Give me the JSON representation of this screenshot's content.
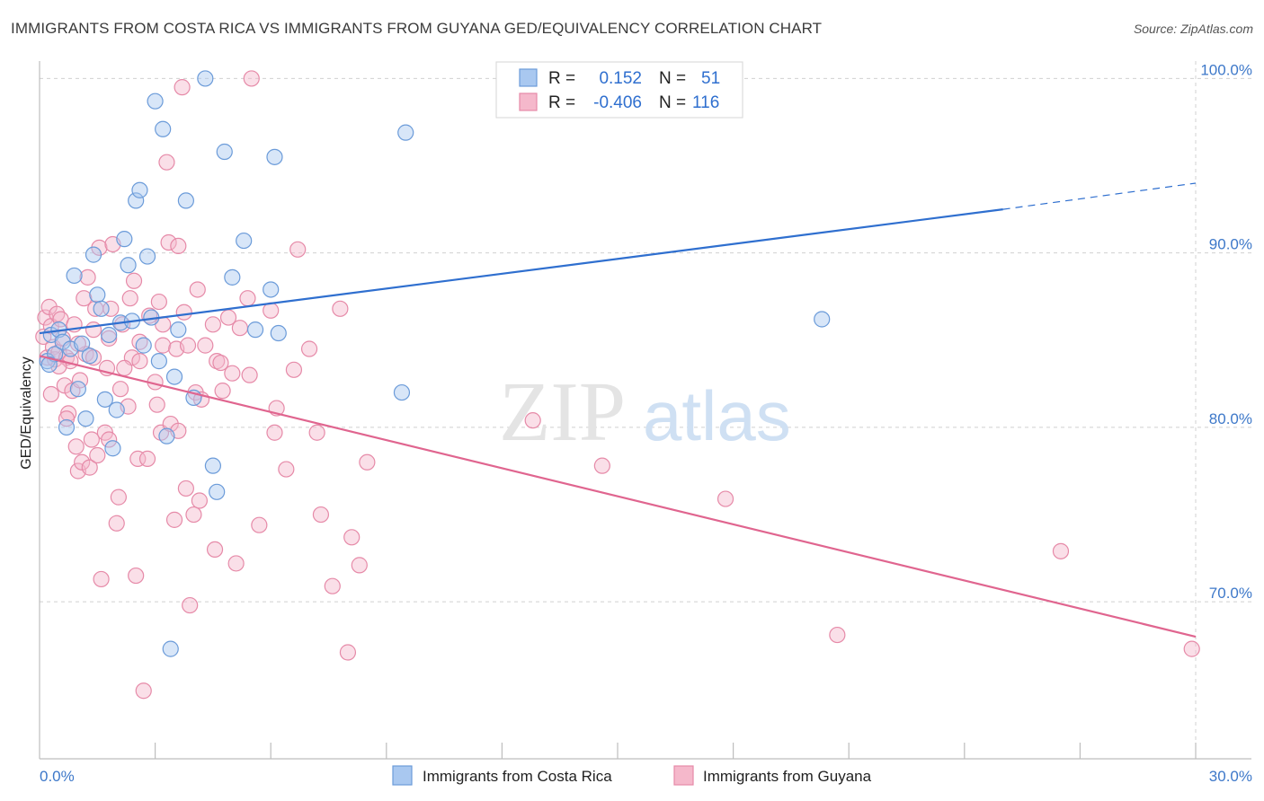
{
  "title": "IMMIGRANTS FROM COSTA RICA VS IMMIGRANTS FROM GUYANA GED/EQUIVALENCY CORRELATION CHART",
  "source": "Source: ZipAtlas.com",
  "watermark": {
    "zip": "ZIP",
    "atlas": "atlas"
  },
  "colors": {
    "blue_fill": "#a9c8f0",
    "blue_stroke": "#6b9bd9",
    "blue_line": "#2f6fcf",
    "pink_fill": "#f5b8cb",
    "pink_stroke": "#e68aa8",
    "pink_line": "#e0658f",
    "axis_text": "#3d78c9",
    "grid": "#d0d0d0"
  },
  "legend": {
    "r_label": "R =",
    "n_label": "N =",
    "rows": [
      {
        "series": "costa_rica",
        "r": "0.152",
        "n": "51"
      },
      {
        "series": "guyana",
        "r": "-0.406",
        "n": "116"
      }
    ]
  },
  "bottom_legend": [
    "Immigrants from Costa Rica",
    "Immigrants from Guyana"
  ],
  "chart_data": {
    "type": "scatter",
    "xlabel": "",
    "ylabel": "GED/Equivalency",
    "xlim": [
      0,
      30
    ],
    "ylim": [
      61,
      101
    ],
    "x_tick_labels": [
      {
        "value": 0,
        "label": "0.0%"
      },
      {
        "value": 30,
        "label": "30.0%"
      }
    ],
    "x_minor_ticks": [
      3,
      6,
      9,
      12,
      15,
      18,
      21,
      24,
      27,
      30
    ],
    "y_ticks": [
      {
        "value": 100,
        "label": "100.0%"
      },
      {
        "value": 90,
        "label": "90.0%"
      },
      {
        "value": 80,
        "label": "80.0%"
      },
      {
        "value": 70,
        "label": "70.0%"
      }
    ],
    "grid": "horizontal dashed",
    "legend_position": "top-center",
    "series": [
      {
        "name": "Immigrants from Costa Rica",
        "color": "blue",
        "trend": {
          "x0": 0,
          "y0": 85.4,
          "x1": 25.0,
          "y1": 92.5,
          "dash_to_x": 30.0,
          "dash_to_y": 94.0
        },
        "points": [
          [
            0.2,
            83.8
          ],
          [
            0.3,
            85.3
          ],
          [
            0.4,
            84.2
          ],
          [
            0.5,
            85.6
          ],
          [
            0.6,
            84.9
          ],
          [
            0.7,
            80.0
          ],
          [
            0.8,
            84.5
          ],
          [
            0.9,
            88.7
          ],
          [
            1.0,
            82.2
          ],
          [
            1.1,
            84.8
          ],
          [
            1.2,
            80.5
          ],
          [
            1.3,
            84.1
          ],
          [
            1.4,
            89.9
          ],
          [
            1.5,
            87.6
          ],
          [
            1.6,
            86.8
          ],
          [
            1.7,
            81.6
          ],
          [
            1.8,
            85.3
          ],
          [
            1.9,
            78.8
          ],
          [
            2.0,
            81.0
          ],
          [
            2.1,
            86.0
          ],
          [
            2.2,
            90.8
          ],
          [
            2.3,
            89.3
          ],
          [
            2.4,
            86.1
          ],
          [
            2.5,
            93.0
          ],
          [
            2.6,
            93.6
          ],
          [
            2.7,
            84.7
          ],
          [
            2.8,
            89.8
          ],
          [
            2.9,
            86.3
          ],
          [
            3.0,
            98.7
          ],
          [
            3.1,
            83.8
          ],
          [
            3.2,
            97.1
          ],
          [
            3.3,
            79.5
          ],
          [
            3.4,
            67.3
          ],
          [
            3.5,
            82.9
          ],
          [
            3.6,
            85.6
          ],
          [
            3.8,
            93.0
          ],
          [
            4.0,
            81.7
          ],
          [
            4.5,
            77.8
          ],
          [
            4.6,
            76.3
          ],
          [
            4.3,
            100.0
          ],
          [
            4.8,
            95.8
          ],
          [
            5.0,
            88.6
          ],
          [
            5.3,
            90.7
          ],
          [
            5.6,
            85.6
          ],
          [
            6.0,
            87.9
          ],
          [
            6.1,
            95.5
          ],
          [
            6.2,
            85.4
          ],
          [
            9.5,
            96.9
          ],
          [
            9.4,
            82.0
          ],
          [
            20.3,
            86.2
          ],
          [
            0.25,
            83.6
          ]
        ]
      },
      {
        "name": "Immigrants from Guyana",
        "color": "pink",
        "trend": {
          "x0": 0,
          "y0": 84.1,
          "x1": 30.0,
          "y1": 68.0
        },
        "points": [
          [
            0.1,
            85.2
          ],
          [
            0.15,
            86.3
          ],
          [
            0.2,
            84.0
          ],
          [
            0.25,
            86.9
          ],
          [
            0.3,
            85.8
          ],
          [
            0.35,
            84.6
          ],
          [
            0.4,
            83.9
          ],
          [
            0.45,
            86.5
          ],
          [
            0.5,
            84.3
          ],
          [
            0.55,
            86.2
          ],
          [
            0.6,
            85.1
          ],
          [
            0.65,
            82.4
          ],
          [
            0.7,
            84.0
          ],
          [
            0.75,
            80.8
          ],
          [
            0.8,
            83.8
          ],
          [
            0.85,
            82.1
          ],
          [
            0.9,
            85.9
          ],
          [
            0.95,
            78.9
          ],
          [
            1.0,
            77.5
          ],
          [
            1.05,
            82.7
          ],
          [
            1.1,
            78.0
          ],
          [
            1.15,
            87.4
          ],
          [
            1.2,
            84.2
          ],
          [
            1.25,
            88.6
          ],
          [
            1.3,
            77.7
          ],
          [
            1.35,
            79.3
          ],
          [
            1.4,
            84.0
          ],
          [
            1.45,
            86.8
          ],
          [
            1.5,
            78.4
          ],
          [
            1.55,
            90.3
          ],
          [
            1.6,
            71.3
          ],
          [
            1.7,
            79.7
          ],
          [
            1.75,
            83.4
          ],
          [
            1.8,
            85.1
          ],
          [
            1.85,
            86.8
          ],
          [
            1.9,
            90.5
          ],
          [
            2.0,
            74.5
          ],
          [
            2.05,
            76.0
          ],
          [
            2.1,
            82.2
          ],
          [
            2.15,
            85.9
          ],
          [
            2.3,
            81.2
          ],
          [
            2.35,
            87.4
          ],
          [
            2.4,
            84.0
          ],
          [
            2.45,
            88.4
          ],
          [
            2.5,
            71.5
          ],
          [
            2.55,
            78.2
          ],
          [
            2.6,
            83.8
          ],
          [
            2.7,
            64.9
          ],
          [
            2.8,
            78.2
          ],
          [
            2.85,
            86.4
          ],
          [
            3.0,
            82.6
          ],
          [
            3.05,
            81.3
          ],
          [
            3.1,
            87.2
          ],
          [
            3.15,
            79.7
          ],
          [
            3.2,
            84.7
          ],
          [
            3.3,
            95.2
          ],
          [
            3.35,
            90.6
          ],
          [
            3.4,
            80.2
          ],
          [
            3.5,
            74.7
          ],
          [
            3.55,
            84.5
          ],
          [
            3.6,
            90.4
          ],
          [
            3.7,
            99.5
          ],
          [
            3.75,
            86.6
          ],
          [
            3.8,
            76.5
          ],
          [
            3.85,
            84.7
          ],
          [
            3.9,
            69.8
          ],
          [
            4.0,
            75.0
          ],
          [
            4.05,
            82.0
          ],
          [
            4.1,
            87.9
          ],
          [
            4.15,
            75.8
          ],
          [
            4.2,
            81.6
          ],
          [
            4.5,
            85.9
          ],
          [
            4.55,
            73.0
          ],
          [
            4.6,
            83.8
          ],
          [
            4.7,
            83.7
          ],
          [
            4.75,
            82.1
          ],
          [
            4.9,
            86.3
          ],
          [
            5.0,
            83.1
          ],
          [
            5.1,
            72.2
          ],
          [
            5.2,
            85.7
          ],
          [
            5.4,
            87.4
          ],
          [
            5.45,
            83.0
          ],
          [
            5.5,
            100.0
          ],
          [
            5.7,
            74.4
          ],
          [
            6.0,
            86.7
          ],
          [
            6.1,
            79.7
          ],
          [
            6.15,
            81.1
          ],
          [
            6.4,
            77.6
          ],
          [
            6.6,
            83.3
          ],
          [
            6.7,
            90.2
          ],
          [
            7.0,
            84.5
          ],
          [
            7.2,
            79.7
          ],
          [
            7.3,
            75.0
          ],
          [
            7.6,
            70.9
          ],
          [
            7.8,
            86.8
          ],
          [
            8.0,
            67.1
          ],
          [
            8.1,
            73.7
          ],
          [
            8.3,
            72.1
          ],
          [
            8.5,
            78.0
          ],
          [
            12.8,
            80.4
          ],
          [
            14.6,
            77.8
          ],
          [
            17.8,
            75.9
          ],
          [
            20.7,
            68.1
          ],
          [
            26.5,
            72.9
          ],
          [
            29.9,
            67.3
          ],
          [
            0.3,
            81.9
          ],
          [
            0.5,
            83.5
          ],
          [
            0.7,
            80.5
          ],
          [
            1.0,
            84.8
          ],
          [
            1.4,
            85.6
          ],
          [
            1.8,
            79.3
          ],
          [
            2.2,
            83.4
          ],
          [
            2.6,
            84.9
          ],
          [
            3.2,
            85.9
          ],
          [
            3.6,
            79.8
          ],
          [
            4.3,
            84.7
          ]
        ]
      }
    ]
  }
}
